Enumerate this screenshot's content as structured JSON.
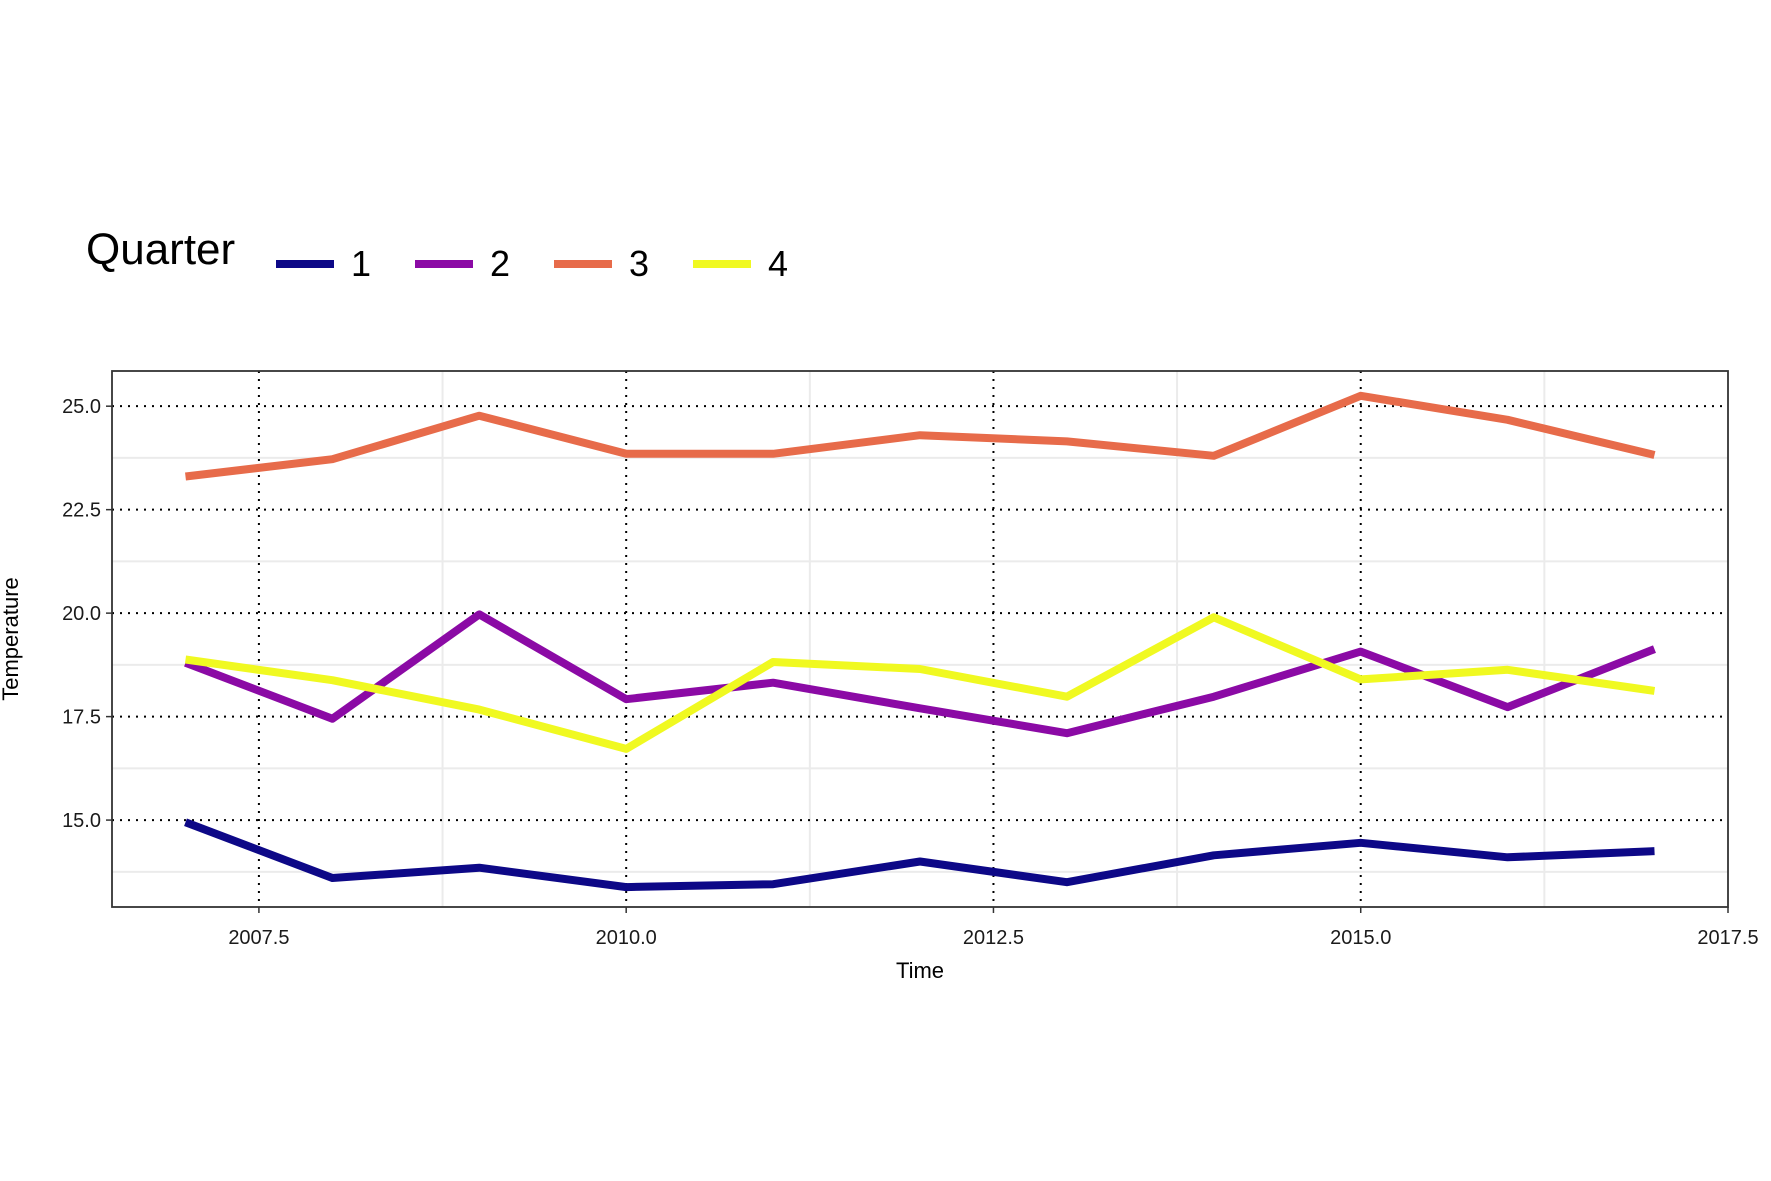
{
  "chart_data": {
    "type": "line",
    "xlabel": "Time",
    "ylabel": "Temperature",
    "xlim": [
      2006.5,
      2017.5
    ],
    "ylim": [
      12.9,
      25.85
    ],
    "x_ticks": [
      2007.5,
      2010.0,
      2012.5,
      2015.0,
      2017.5
    ],
    "x_tick_labels": [
      "2007.5",
      "2010.0",
      "2012.5",
      "2015.0",
      "2017.5"
    ],
    "y_ticks": [
      15.0,
      17.5,
      20.0,
      22.5,
      25.0
    ],
    "y_tick_labels": [
      "15.0",
      "17.5",
      "20.0",
      "22.5",
      "25.0"
    ],
    "grid": true,
    "legend": {
      "title": "Quarter",
      "position": "top-left, horizontal"
    },
    "x": [
      2007,
      2008,
      2009,
      2010,
      2011,
      2012,
      2013,
      2014,
      2015,
      2016,
      2017
    ],
    "series": [
      {
        "name": "1",
        "color": "#0d0887",
        "values": [
          14.95,
          13.6,
          13.85,
          13.38,
          13.45,
          14.0,
          13.5,
          14.15,
          14.45,
          14.1,
          14.25
        ]
      },
      {
        "name": "2",
        "color": "#8b0aa5",
        "values": [
          18.8,
          17.45,
          19.97,
          17.92,
          18.32,
          17.7,
          17.1,
          17.98,
          19.07,
          17.73,
          19.13
        ]
      },
      {
        "name": "3",
        "color": "#e76b4a",
        "values": [
          23.3,
          23.72,
          24.77,
          23.85,
          23.85,
          24.3,
          24.15,
          23.8,
          25.25,
          24.67,
          23.82
        ]
      },
      {
        "name": "4",
        "color": "#f0f921",
        "values": [
          18.88,
          18.38,
          17.67,
          16.72,
          18.82,
          18.65,
          17.98,
          19.9,
          18.4,
          18.63,
          18.12
        ]
      }
    ]
  }
}
